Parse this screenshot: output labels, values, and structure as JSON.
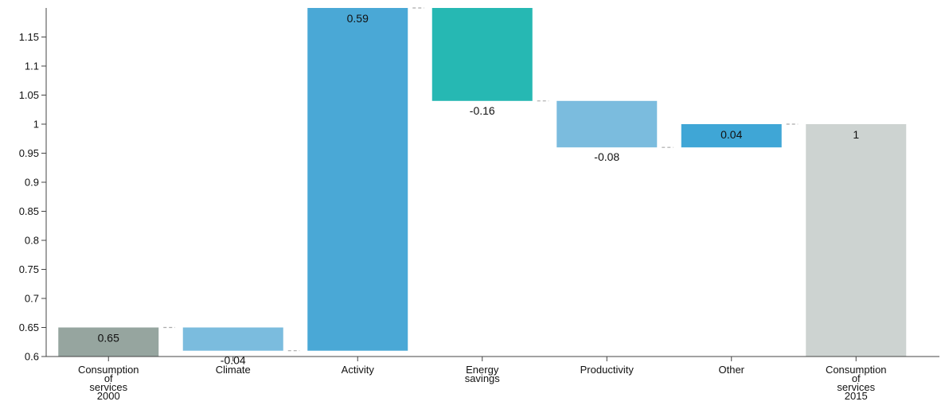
{
  "chart_data": {
    "type": "bar",
    "subtype": "waterfall",
    "title": "",
    "xlabel": "",
    "ylabel": "",
    "ylim": [
      0.6,
      1.2
    ],
    "yticks": [
      0.6,
      0.65,
      0.7,
      0.75,
      0.8,
      0.85,
      0.9,
      0.95,
      1,
      1.05,
      1.1,
      1.15
    ],
    "grid": false,
    "categories": [
      [
        "Consumption",
        "of",
        "services",
        "2000"
      ],
      [
        "Climate"
      ],
      [
        "Activity"
      ],
      [
        "Energy",
        "savings"
      ],
      [
        "Productivity"
      ],
      [
        "Other"
      ],
      [
        "Consumption",
        "of",
        "services",
        "2015"
      ]
    ],
    "bars": [
      {
        "kind": "total",
        "base": 0.6,
        "top": 0.65,
        "label": "0.65",
        "color": "#96a59f"
      },
      {
        "kind": "delta",
        "base": 0.65,
        "top": 0.61,
        "label": "-0.04",
        "color": "#7bbcde"
      },
      {
        "kind": "delta",
        "base": 0.61,
        "top": 1.2,
        "label": "0.59",
        "color": "#4aa8d6"
      },
      {
        "kind": "delta",
        "base": 1.2,
        "top": 1.04,
        "label": "-0.16",
        "color": "#26b8b3"
      },
      {
        "kind": "delta",
        "base": 1.04,
        "top": 0.96,
        "label": "-0.08",
        "color": "#7bbcde"
      },
      {
        "kind": "delta",
        "base": 0.96,
        "top": 1.0,
        "label": "0.04",
        "color": "#3fa6d6"
      },
      {
        "kind": "total",
        "base": 0.6,
        "top": 1.0,
        "label": "1",
        "color": "#cdd3d1"
      }
    ]
  }
}
